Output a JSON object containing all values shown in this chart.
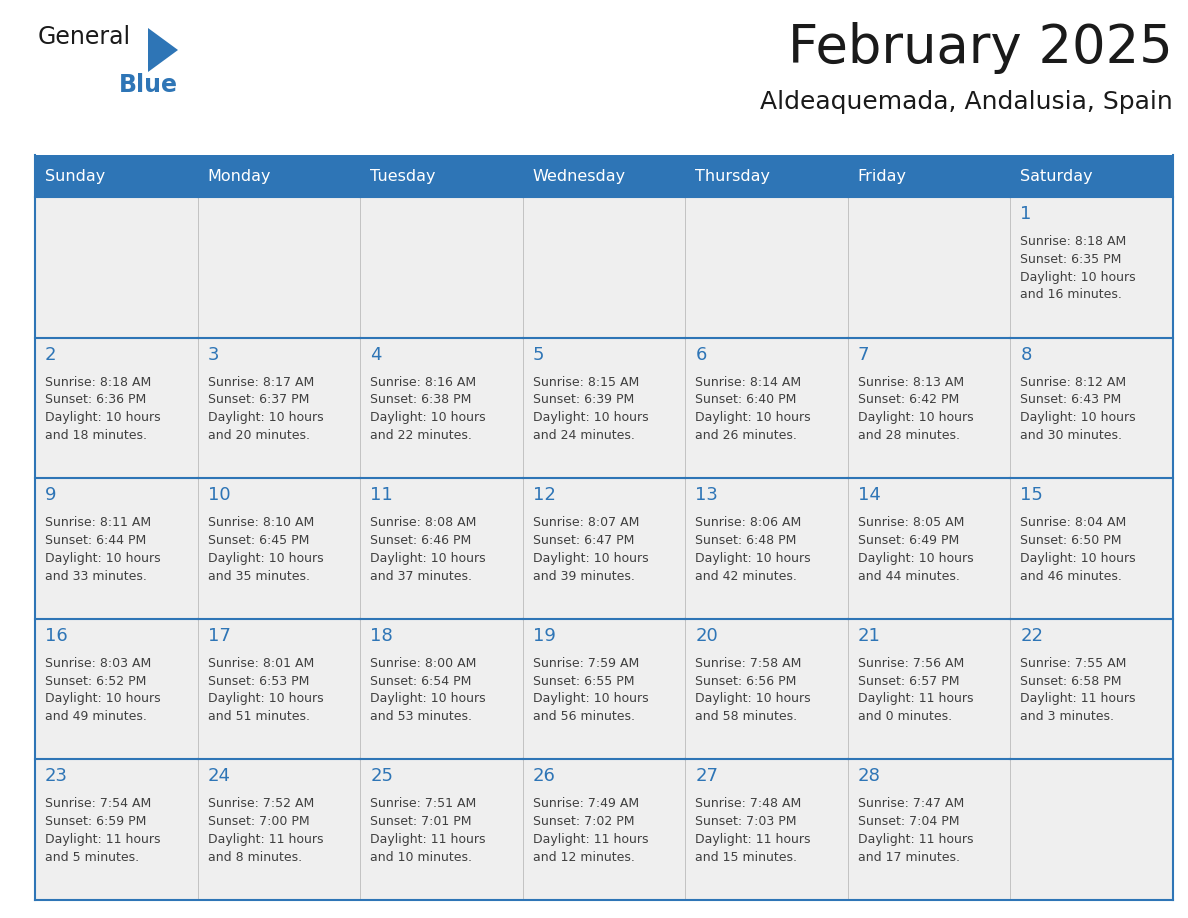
{
  "title": "February 2025",
  "subtitle": "Aldeaquemada, Andalusia, Spain",
  "header_color": "#2E75B6",
  "header_text_color": "#FFFFFF",
  "cell_bg_color": "#EFEFEF",
  "border_color": "#2E75B6",
  "day_number_color": "#2E75B6",
  "info_text_color": "#404040",
  "title_color": "#1A1A1A",
  "days_of_week": [
    "Sunday",
    "Monday",
    "Tuesday",
    "Wednesday",
    "Thursday",
    "Friday",
    "Saturday"
  ],
  "weeks": [
    [
      {
        "day": null,
        "info": ""
      },
      {
        "day": null,
        "info": ""
      },
      {
        "day": null,
        "info": ""
      },
      {
        "day": null,
        "info": ""
      },
      {
        "day": null,
        "info": ""
      },
      {
        "day": null,
        "info": ""
      },
      {
        "day": 1,
        "info": "Sunrise: 8:18 AM\nSunset: 6:35 PM\nDaylight: 10 hours\nand 16 minutes."
      }
    ],
    [
      {
        "day": 2,
        "info": "Sunrise: 8:18 AM\nSunset: 6:36 PM\nDaylight: 10 hours\nand 18 minutes."
      },
      {
        "day": 3,
        "info": "Sunrise: 8:17 AM\nSunset: 6:37 PM\nDaylight: 10 hours\nand 20 minutes."
      },
      {
        "day": 4,
        "info": "Sunrise: 8:16 AM\nSunset: 6:38 PM\nDaylight: 10 hours\nand 22 minutes."
      },
      {
        "day": 5,
        "info": "Sunrise: 8:15 AM\nSunset: 6:39 PM\nDaylight: 10 hours\nand 24 minutes."
      },
      {
        "day": 6,
        "info": "Sunrise: 8:14 AM\nSunset: 6:40 PM\nDaylight: 10 hours\nand 26 minutes."
      },
      {
        "day": 7,
        "info": "Sunrise: 8:13 AM\nSunset: 6:42 PM\nDaylight: 10 hours\nand 28 minutes."
      },
      {
        "day": 8,
        "info": "Sunrise: 8:12 AM\nSunset: 6:43 PM\nDaylight: 10 hours\nand 30 minutes."
      }
    ],
    [
      {
        "day": 9,
        "info": "Sunrise: 8:11 AM\nSunset: 6:44 PM\nDaylight: 10 hours\nand 33 minutes."
      },
      {
        "day": 10,
        "info": "Sunrise: 8:10 AM\nSunset: 6:45 PM\nDaylight: 10 hours\nand 35 minutes."
      },
      {
        "day": 11,
        "info": "Sunrise: 8:08 AM\nSunset: 6:46 PM\nDaylight: 10 hours\nand 37 minutes."
      },
      {
        "day": 12,
        "info": "Sunrise: 8:07 AM\nSunset: 6:47 PM\nDaylight: 10 hours\nand 39 minutes."
      },
      {
        "day": 13,
        "info": "Sunrise: 8:06 AM\nSunset: 6:48 PM\nDaylight: 10 hours\nand 42 minutes."
      },
      {
        "day": 14,
        "info": "Sunrise: 8:05 AM\nSunset: 6:49 PM\nDaylight: 10 hours\nand 44 minutes."
      },
      {
        "day": 15,
        "info": "Sunrise: 8:04 AM\nSunset: 6:50 PM\nDaylight: 10 hours\nand 46 minutes."
      }
    ],
    [
      {
        "day": 16,
        "info": "Sunrise: 8:03 AM\nSunset: 6:52 PM\nDaylight: 10 hours\nand 49 minutes."
      },
      {
        "day": 17,
        "info": "Sunrise: 8:01 AM\nSunset: 6:53 PM\nDaylight: 10 hours\nand 51 minutes."
      },
      {
        "day": 18,
        "info": "Sunrise: 8:00 AM\nSunset: 6:54 PM\nDaylight: 10 hours\nand 53 minutes."
      },
      {
        "day": 19,
        "info": "Sunrise: 7:59 AM\nSunset: 6:55 PM\nDaylight: 10 hours\nand 56 minutes."
      },
      {
        "day": 20,
        "info": "Sunrise: 7:58 AM\nSunset: 6:56 PM\nDaylight: 10 hours\nand 58 minutes."
      },
      {
        "day": 21,
        "info": "Sunrise: 7:56 AM\nSunset: 6:57 PM\nDaylight: 11 hours\nand 0 minutes."
      },
      {
        "day": 22,
        "info": "Sunrise: 7:55 AM\nSunset: 6:58 PM\nDaylight: 11 hours\nand 3 minutes."
      }
    ],
    [
      {
        "day": 23,
        "info": "Sunrise: 7:54 AM\nSunset: 6:59 PM\nDaylight: 11 hours\nand 5 minutes."
      },
      {
        "day": 24,
        "info": "Sunrise: 7:52 AM\nSunset: 7:00 PM\nDaylight: 11 hours\nand 8 minutes."
      },
      {
        "day": 25,
        "info": "Sunrise: 7:51 AM\nSunset: 7:01 PM\nDaylight: 11 hours\nand 10 minutes."
      },
      {
        "day": 26,
        "info": "Sunrise: 7:49 AM\nSunset: 7:02 PM\nDaylight: 11 hours\nand 12 minutes."
      },
      {
        "day": 27,
        "info": "Sunrise: 7:48 AM\nSunset: 7:03 PM\nDaylight: 11 hours\nand 15 minutes."
      },
      {
        "day": 28,
        "info": "Sunrise: 7:47 AM\nSunset: 7:04 PM\nDaylight: 11 hours\nand 17 minutes."
      },
      {
        "day": null,
        "info": ""
      }
    ]
  ],
  "logo_general_color": "#1A1A1A",
  "logo_blue_color": "#2E75B6",
  "figsize": [
    11.88,
    9.18
  ],
  "dpi": 100
}
